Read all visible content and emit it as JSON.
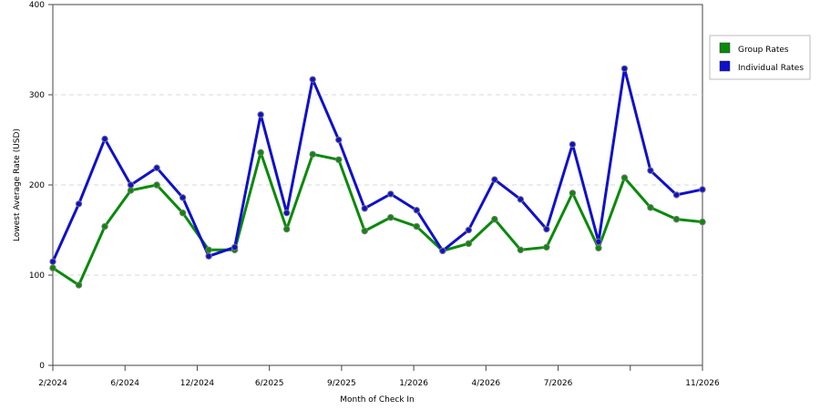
{
  "chart_data": {
    "type": "line",
    "xlabel": "Month of Check In",
    "ylabel": "Lowest Average Rate (USD)",
    "ylim": [
      0,
      400
    ],
    "yticks": [
      0,
      100,
      200,
      300,
      400
    ],
    "grid": true,
    "legend_position": "top-right",
    "x_tick_labels": [
      "2/2024",
      "6/2024",
      "12/2024",
      "6/2025",
      "9/2025",
      "1/2026",
      "4/2026",
      "7/2026",
      "",
      "11/2026"
    ],
    "series": [
      {
        "name": "Group Rates",
        "color": "#0a8a0a",
        "values": [
          108,
          89,
          154,
          194,
          200,
          169,
          128,
          128,
          236,
          151,
          234,
          228,
          149,
          164,
          154,
          127,
          135,
          162,
          128,
          131,
          191,
          130,
          208,
          175,
          162,
          159
        ]
      },
      {
        "name": "Individual Rates",
        "color": "#1010cc",
        "values": [
          115,
          179,
          251,
          200,
          219,
          186,
          121,
          131,
          278,
          169,
          317,
          250,
          174,
          190,
          172,
          127,
          150,
          206,
          184,
          151,
          245,
          137,
          329,
          216,
          189,
          195
        ]
      }
    ]
  }
}
